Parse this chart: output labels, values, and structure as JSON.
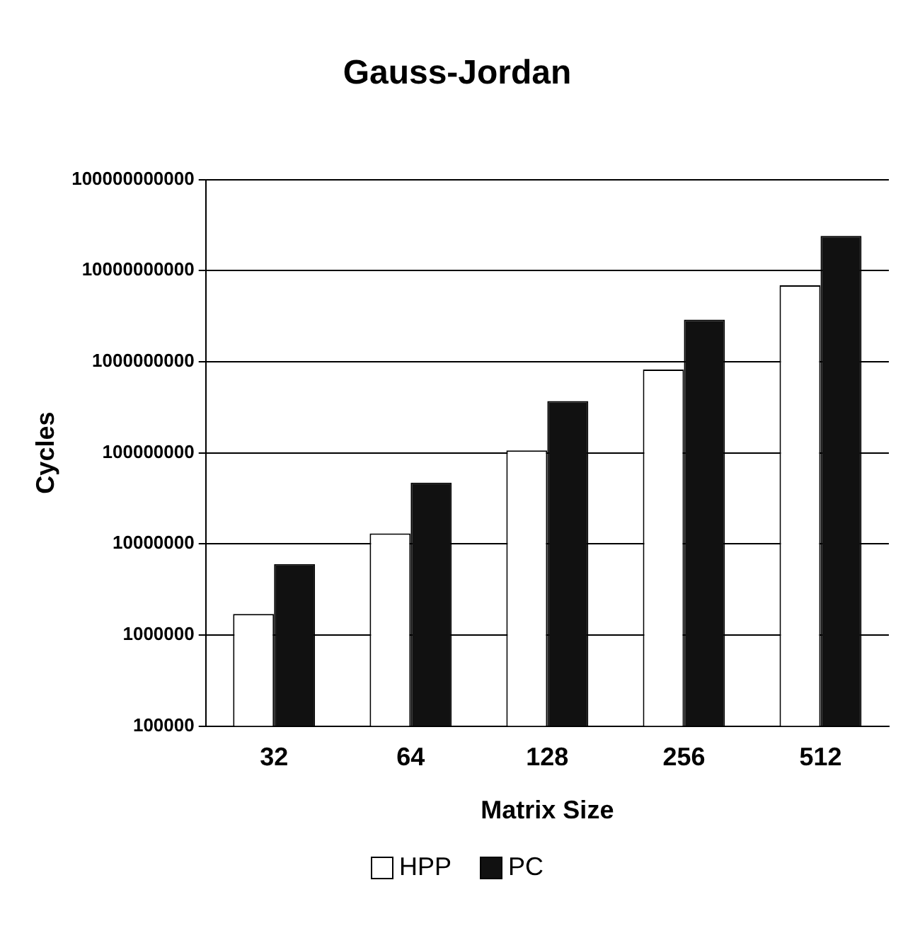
{
  "chart_data": {
    "type": "bar",
    "title": "Gauss-Jordan",
    "xlabel": "Matrix Size",
    "ylabel": "Cycles",
    "categories": [
      "32",
      "64",
      "128",
      "256",
      "512"
    ],
    "series": [
      {
        "name": "HPP",
        "color": "#ffffff",
        "values": [
          1700000,
          13000000,
          106000000,
          820000000,
          6900000000
        ]
      },
      {
        "name": "PC",
        "color": "#111111",
        "values": [
          6000000,
          47000000,
          370000000,
          2900000000,
          24000000000
        ]
      }
    ],
    "log": "y",
    "ylim": [
      100000,
      100000000000
    ],
    "yticks": [
      100000,
      1000000,
      10000000,
      100000000,
      1000000000,
      10000000000,
      100000000000
    ],
    "grid": "y",
    "legend": "bottom"
  }
}
